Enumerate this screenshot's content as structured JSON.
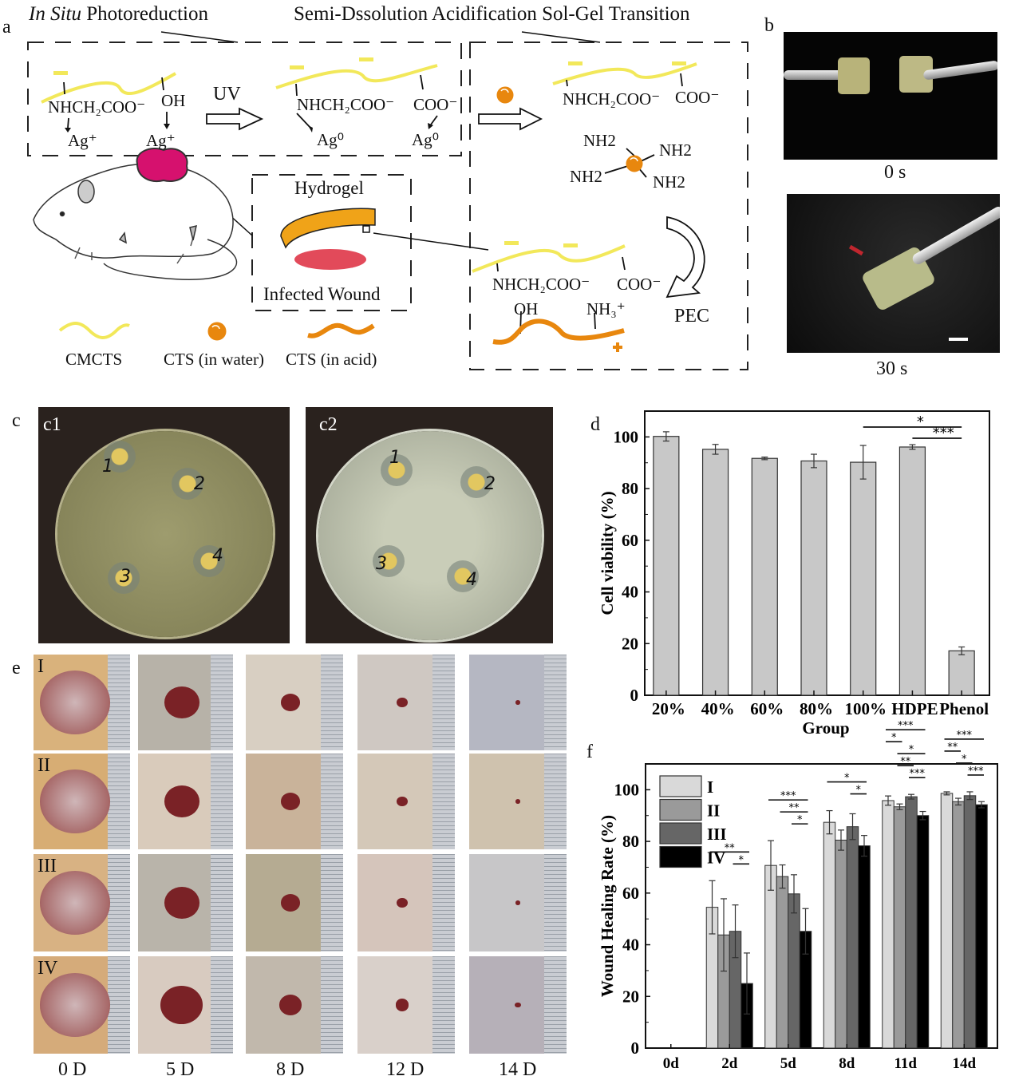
{
  "panel_labels": {
    "a": "a",
    "b": "b",
    "c": "c",
    "d": "d",
    "e": "e",
    "f": "f"
  },
  "panel_a": {
    "title_left_italic": "In Situ",
    "title_left_rest": " Photoreduction",
    "title_right": "Semi-Dssolution Acidification Sol-Gel Transition",
    "box1": {
      "chain1_group1": "NHCH₂COO⁻",
      "chain1_group2": "OH",
      "ion1": "Ag⁺",
      "ion2": "Ag⁺",
      "arrow_label": "UV",
      "chain2_group1": "NHCH₂COO⁻",
      "chain2_group2": "COO⁻",
      "metal1": "Ag⁰",
      "metal2": "Ag⁰"
    },
    "box2": {
      "chain_group1": "NHCH₂COO⁻",
      "chain_group2": "COO⁻",
      "amines": [
        "NH2",
        "NH2",
        "NH2",
        "NH2"
      ],
      "pec_label": "PEC",
      "bottom_group1": "NHCH₂COO⁻",
      "bottom_group2": "COO⁻",
      "bottom_group3": "OH",
      "bottom_group4": "NH₃⁺",
      "plus": "+"
    },
    "hydrogel_label": "Hydrogel",
    "wound_label": "Infected Wound",
    "legend": [
      "CMCTS",
      "CTS (in water)",
      "CTS (in acid)"
    ],
    "colors": {
      "cmcts": "#f2e85a",
      "cts": "#e8870e",
      "tumor": "#d6116e",
      "wound": "#e24a5a",
      "hydrogel": "#f0a318"
    }
  },
  "panel_b": {
    "captions": [
      "0 s",
      "30 s"
    ]
  },
  "panel_c": {
    "subpanels": [
      "c1",
      "c2"
    ],
    "disk_labels": [
      "1",
      "2",
      "3",
      "4"
    ]
  },
  "panel_e": {
    "rows": [
      "I",
      "II",
      "III",
      "IV"
    ],
    "columns": [
      "0 D",
      "5 D",
      "8 D",
      "12 D",
      "14 D"
    ]
  },
  "chart_data": [
    {
      "id": "d",
      "type": "bar",
      "xlabel": "Group",
      "ylabel": "Cell viability (%)",
      "categories": [
        "20%",
        "40%",
        "60%",
        "80%",
        "100%",
        "HDPE",
        "Phenol"
      ],
      "values": [
        100.2,
        95.2,
        91.7,
        90.7,
        90.2,
        96.1,
        17.2
      ],
      "errors": [
        1.8,
        1.9,
        0.5,
        2.6,
        6.5,
        0.9,
        1.5
      ],
      "ylim": [
        0,
        110
      ],
      "yticks": [
        0,
        20,
        40,
        60,
        80,
        100
      ],
      "bar_color": "#c8c8c8",
      "significance": [
        {
          "from": "100%",
          "to": "Phenol",
          "label": "*"
        },
        {
          "from": "HDPE",
          "to": "Phenol",
          "label": "***"
        }
      ],
      "grid": false
    },
    {
      "id": "f",
      "type": "bar",
      "xlabel": "",
      "ylabel": "Wound Healing Rate (%)",
      "categories": [
        "0d",
        "2d",
        "5d",
        "8d",
        "11d",
        "14d"
      ],
      "series": [
        {
          "name": "I",
          "color": "#d9d9d9",
          "values": [
            0,
            54.5,
            70.7,
            87.4,
            95.8,
            98.6
          ],
          "errors": [
            0,
            10.3,
            9.6,
            4.5,
            1.8,
            0.6
          ]
        },
        {
          "name": "II",
          "color": "#9a9a9a",
          "values": [
            0,
            43.8,
            66.4,
            80.5,
            93.4,
            95.4
          ],
          "errors": [
            0,
            14,
            4.5,
            3.9,
            1.1,
            1.3
          ]
        },
        {
          "name": "III",
          "color": "#666666",
          "values": [
            0,
            45.2,
            59.7,
            85.7,
            97.3,
            97.7
          ],
          "errors": [
            0,
            10.2,
            7.4,
            5,
            0.9,
            1.5
          ]
        },
        {
          "name": "IV",
          "color": "#000000",
          "values": [
            0,
            25,
            45.2,
            78.3,
            90,
            94.2
          ],
          "errors": [
            0,
            11.8,
            8.8,
            4,
            1.6,
            1.2
          ]
        }
      ],
      "ylim": [
        0,
        110
      ],
      "yticks": [
        0,
        20,
        40,
        60,
        80,
        100
      ],
      "legend": "top-left",
      "significance": [
        {
          "category": "2d",
          "from": "I",
          "to": "IV",
          "label": "**"
        },
        {
          "category": "2d",
          "from": "III",
          "to": "IV",
          "label": "*"
        },
        {
          "category": "5d",
          "from": "I",
          "to": "IV",
          "label": "***"
        },
        {
          "category": "5d",
          "from": "II",
          "to": "IV",
          "label": "**"
        },
        {
          "category": "5d",
          "from": "III",
          "to": "IV",
          "label": "*"
        },
        {
          "category": "8d",
          "from": "I",
          "to": "IV",
          "label": "*"
        },
        {
          "category": "8d",
          "from": "III",
          "to": "IV",
          "label": "*"
        },
        {
          "category": "11d",
          "from": "I",
          "to": "IV",
          "label": "***"
        },
        {
          "category": "11d",
          "from": "I",
          "to": "II",
          "label": "*"
        },
        {
          "category": "11d",
          "from": "II",
          "to": "IV",
          "label": "*"
        },
        {
          "category": "11d",
          "from": "II",
          "to": "III",
          "label": "**"
        },
        {
          "category": "11d",
          "from": "III",
          "to": "IV",
          "label": "***"
        },
        {
          "category": "14d",
          "from": "I",
          "to": "IV",
          "label": "***"
        },
        {
          "category": "14d",
          "from": "I",
          "to": "II",
          "label": "**"
        },
        {
          "category": "14d",
          "from": "II",
          "to": "III",
          "label": "*"
        },
        {
          "category": "14d",
          "from": "III",
          "to": "IV",
          "label": "***"
        }
      ],
      "grid": false
    }
  ]
}
